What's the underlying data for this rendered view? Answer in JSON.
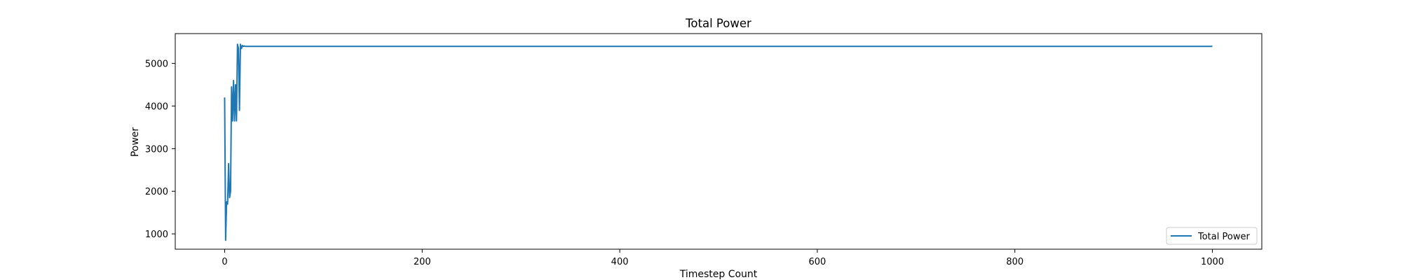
{
  "chart_data": {
    "type": "line",
    "title": "Total Power",
    "xlabel": "Timestep Count",
    "ylabel": "Power",
    "xlim": [
      -50,
      1050
    ],
    "ylim": [
      640,
      5700
    ],
    "x_ticks": [
      0,
      200,
      400,
      600,
      800,
      1000
    ],
    "y_ticks": [
      1000,
      2000,
      3000,
      4000,
      5000
    ],
    "grid": false,
    "legend": "lower right",
    "series": [
      {
        "name": "Total Power",
        "color": "#1f77b4",
        "x": [
          0,
          1,
          2,
          3,
          4,
          5,
          6,
          7,
          8,
          9,
          10,
          11,
          12,
          13,
          14,
          15,
          16,
          17,
          18,
          19,
          20,
          21,
          22,
          1000
        ],
        "y": [
          4200,
          850,
          1750,
          1700,
          2650,
          1850,
          2000,
          4450,
          3650,
          4600,
          3650,
          4500,
          3650,
          5450,
          5350,
          3900,
          5450,
          5350,
          5420,
          5400,
          5410,
          5400,
          5400,
          5400
        ]
      }
    ]
  }
}
